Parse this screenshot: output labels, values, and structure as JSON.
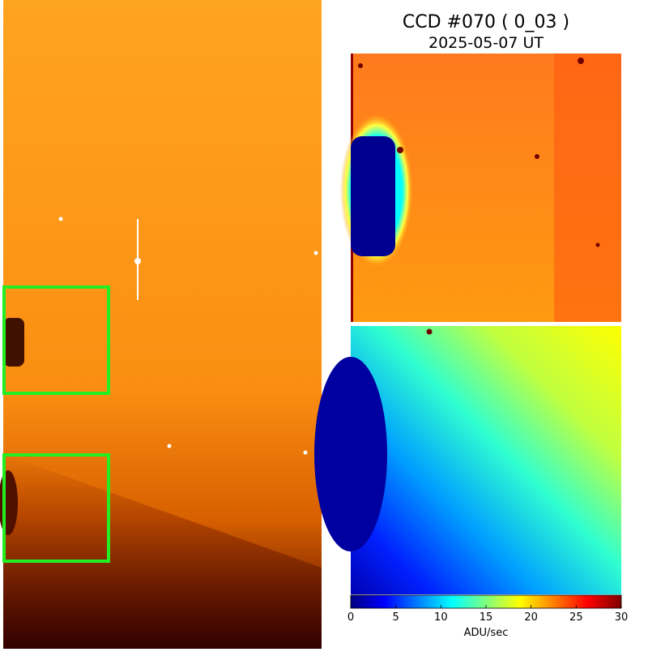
{
  "header": {
    "title": "CCD #070 ( 0_03 )",
    "date": "2025-05-07 UT"
  },
  "colorbar": {
    "label": "ADU/sec",
    "lim": [
      0,
      30
    ],
    "ticks": [
      0,
      5,
      10,
      15,
      20,
      25,
      30
    ]
  }
}
